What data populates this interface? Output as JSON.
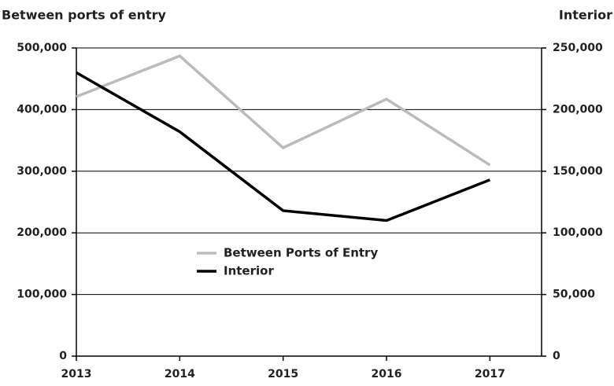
{
  "chart_data": {
    "type": "line",
    "y_label": "Between ports of entry",
    "y2_label": "Interior",
    "categories": [
      "2013",
      "2014",
      "2015",
      "2016",
      "2017"
    ],
    "series": [
      {
        "name": "Between Ports of Entry",
        "color": "#bbbbbb",
        "values": [
          421000,
          487000,
          338000,
          417000,
          310000
        ]
      },
      {
        "name": "Interior",
        "color": "#000000",
        "axis": "y2",
        "values": [
          230000,
          182000,
          118000,
          110000,
          143000
        ]
      }
    ],
    "ylim": [
      0,
      500000
    ],
    "yticks": [
      0,
      {
        "value": 100000,
        "label": "100,000"
      },
      {
        "value": 200000,
        "label": "200,000"
      },
      {
        "value": 300000,
        "label": "300,000"
      },
      {
        "value": 400000,
        "label": "400,000"
      },
      {
        "value": 500000,
        "label": "500,000"
      }
    ],
    "y2lim": [
      0,
      250000
    ],
    "y2ticks": [
      0,
      {
        "value": 50000,
        "label": "50,000"
      },
      {
        "value": 100000,
        "label": "100,000"
      },
      {
        "value": 150000,
        "label": "150,000"
      },
      {
        "value": 200000,
        "label": "200,000"
      },
      {
        "value": 250000,
        "label": "250,000"
      }
    ],
    "grid": true,
    "legend": "center"
  }
}
